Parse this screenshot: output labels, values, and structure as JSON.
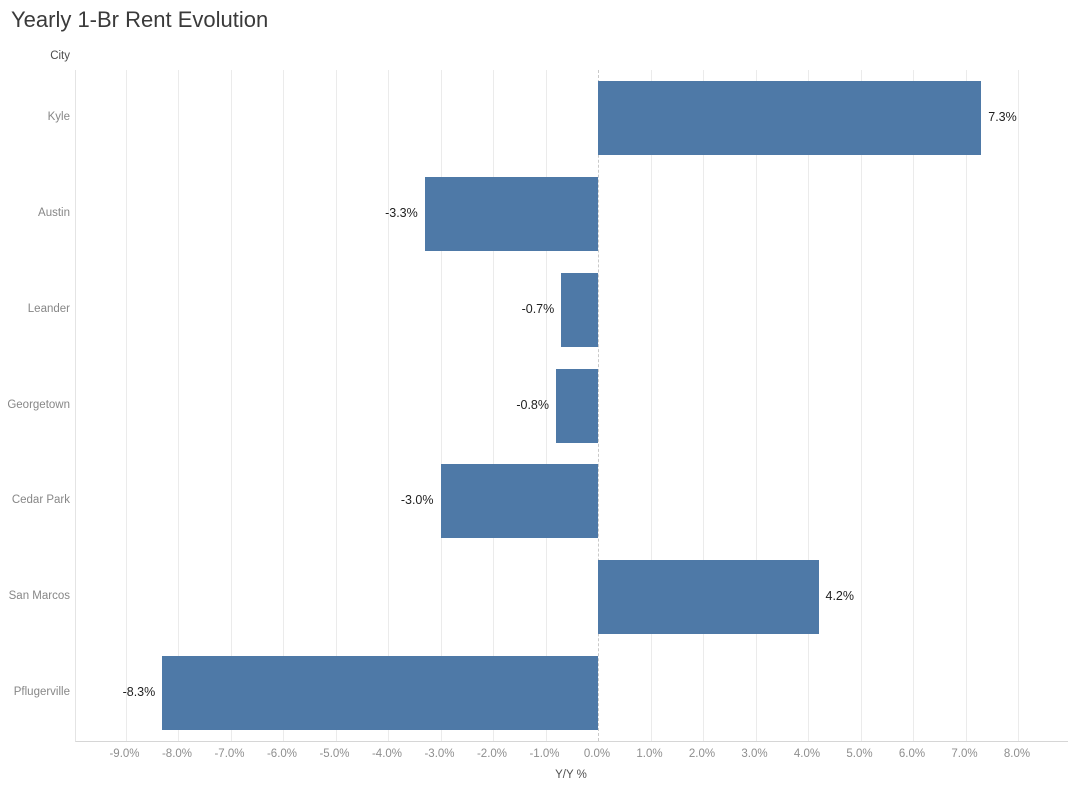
{
  "chart_data": {
    "type": "bar",
    "orientation": "horizontal",
    "title": "Yearly 1-Br Rent Evolution",
    "column_header": "City",
    "categories": [
      "Kyle",
      "Austin",
      "Leander",
      "Georgetown",
      "Cedar Park",
      "San Marcos",
      "Pflugerville"
    ],
    "values": [
      7.3,
      -3.3,
      -0.7,
      -0.8,
      -3.0,
      4.2,
      -8.3
    ],
    "value_labels": [
      "7.3%",
      "-3.3%",
      "-0.7%",
      "-0.8%",
      "-3.0%",
      "4.2%",
      "-8.3%"
    ],
    "xlabel": "Y/Y %",
    "xlim": [
      -9.9,
      9.0
    ],
    "xticks": [
      -9,
      -8,
      -7,
      -6,
      -5,
      -4,
      -3,
      -2,
      -1,
      0,
      1,
      2,
      3,
      4,
      5,
      6,
      7,
      8
    ],
    "xtick_labels": [
      "-9.0%",
      "-8.0%",
      "-7.0%",
      "-6.0%",
      "-5.0%",
      "-4.0%",
      "-3.0%",
      "-2.0%",
      "-1.0%",
      "0.0%",
      "1.0%",
      "2.0%",
      "3.0%",
      "4.0%",
      "5.0%",
      "6.0%",
      "7.0%",
      "8.0%"
    ],
    "grid": true,
    "zero_line_style": "dashed",
    "legend": "none",
    "colors": {
      "bar": "#4e79a7",
      "gridline": "#ebebeb",
      "zero_line": "#c9c9c9",
      "title_text": "#3a3a3a",
      "category_text": "#878787",
      "tick_text": "#8e8e8e",
      "axis_title_text": "#4f4f4f",
      "bar_label_text": "#1f1f1f"
    }
  }
}
